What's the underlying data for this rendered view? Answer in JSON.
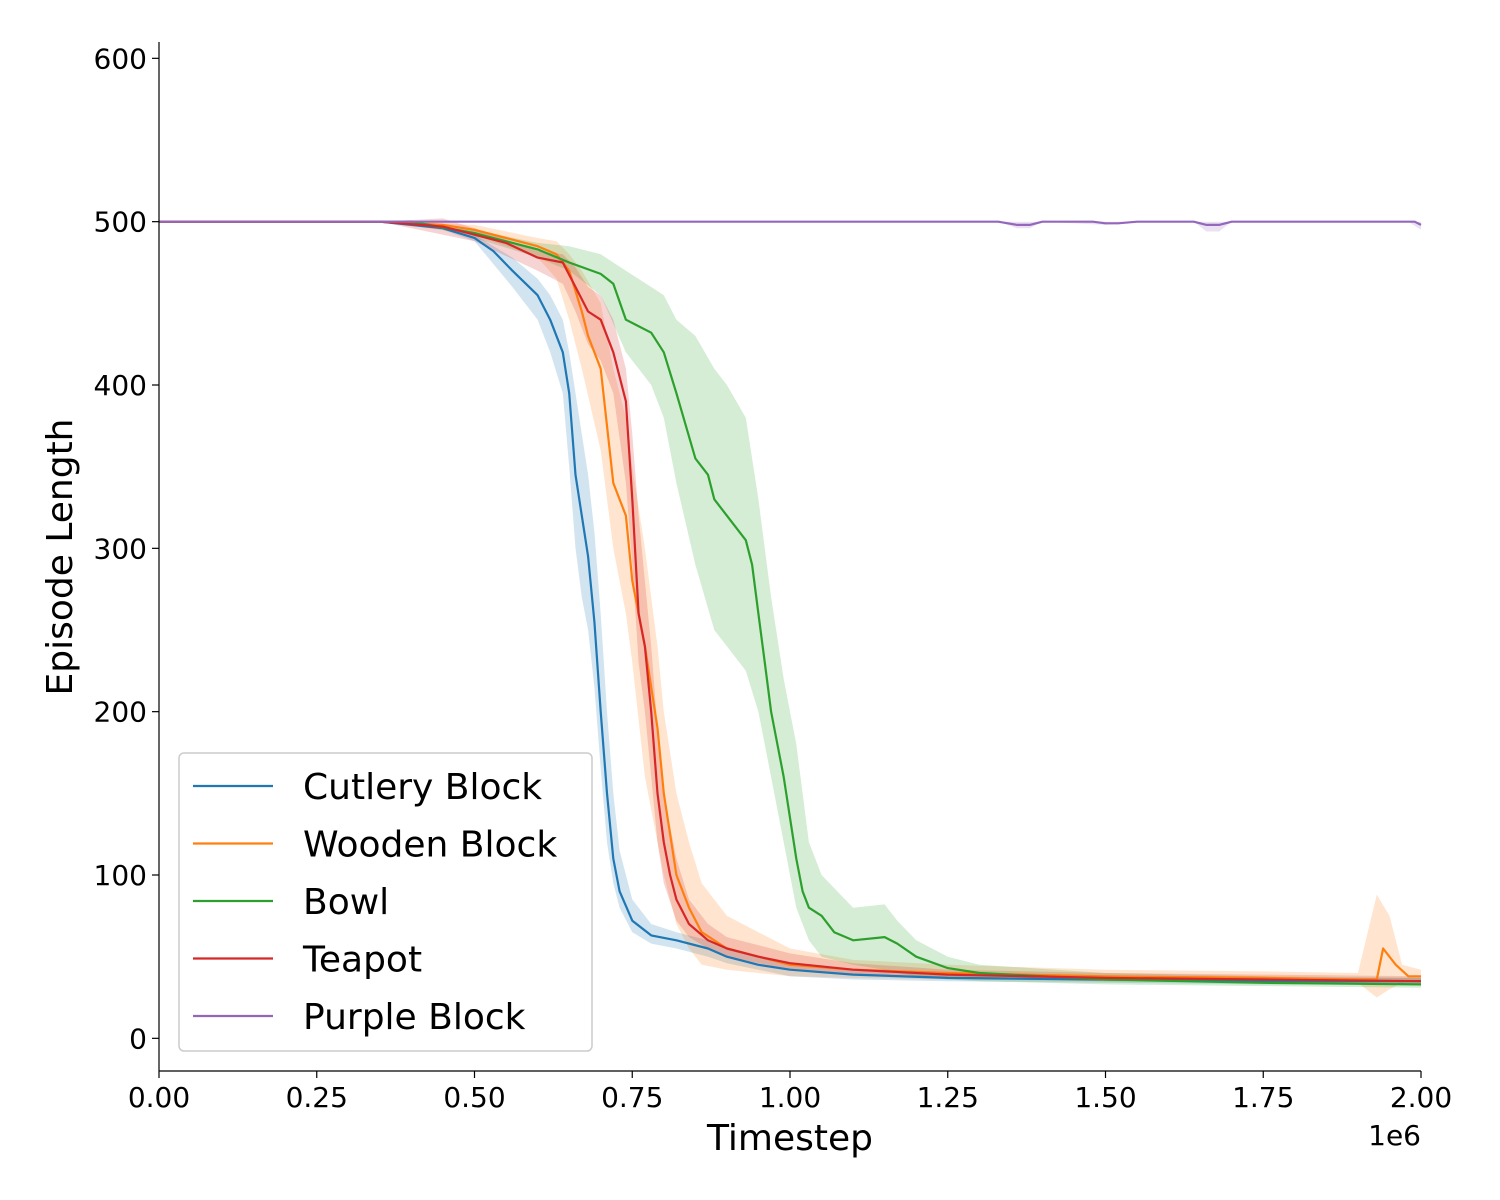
{
  "chart_data": {
    "type": "line",
    "title": "",
    "xlabel": "Timestep",
    "ylabel": "Episode Length",
    "x_offset_label": "1e6",
    "xlim": [
      0,
      2.0
    ],
    "ylim": [
      -20,
      610
    ],
    "x_ticks": [
      "0.00",
      "0.25",
      "0.50",
      "0.75",
      "1.00",
      "1.25",
      "1.50",
      "1.75",
      "2.00"
    ],
    "y_ticks": [
      "0",
      "100",
      "200",
      "300",
      "400",
      "500",
      "600"
    ],
    "grid": false,
    "legend_position": "lower-left",
    "series": [
      {
        "name": "Cutlery Block",
        "color": "#1f77b4",
        "points": [
          [
            0,
            500
          ],
          [
            0.35,
            500
          ],
          [
            0.4,
            498
          ],
          [
            0.45,
            496
          ],
          [
            0.5,
            490
          ],
          [
            0.53,
            482
          ],
          [
            0.56,
            470
          ],
          [
            0.6,
            455
          ],
          [
            0.62,
            440
          ],
          [
            0.64,
            420
          ],
          [
            0.65,
            395
          ],
          [
            0.66,
            345
          ],
          [
            0.67,
            320
          ],
          [
            0.68,
            295
          ],
          [
            0.69,
            255
          ],
          [
            0.7,
            200
          ],
          [
            0.71,
            150
          ],
          [
            0.72,
            110
          ],
          [
            0.73,
            90
          ],
          [
            0.75,
            72
          ],
          [
            0.78,
            63
          ],
          [
            0.82,
            60
          ],
          [
            0.87,
            55
          ],
          [
            0.9,
            50
          ],
          [
            0.95,
            45
          ],
          [
            1.0,
            42
          ],
          [
            1.1,
            39
          ],
          [
            1.25,
            37
          ],
          [
            1.5,
            36
          ],
          [
            1.75,
            35
          ],
          [
            2.0,
            35
          ]
        ],
        "band": [
          [
            0,
            500,
            500
          ],
          [
            0.35,
            500,
            500
          ],
          [
            0.45,
            497,
            495
          ],
          [
            0.5,
            492,
            488
          ],
          [
            0.56,
            478,
            460
          ],
          [
            0.6,
            465,
            440
          ],
          [
            0.62,
            455,
            420
          ],
          [
            0.64,
            440,
            395
          ],
          [
            0.65,
            420,
            350
          ],
          [
            0.66,
            395,
            300
          ],
          [
            0.67,
            370,
            270
          ],
          [
            0.68,
            345,
            250
          ],
          [
            0.69,
            310,
            215
          ],
          [
            0.7,
            260,
            165
          ],
          [
            0.71,
            200,
            120
          ],
          [
            0.72,
            150,
            95
          ],
          [
            0.73,
            115,
            80
          ],
          [
            0.75,
            85,
            65
          ],
          [
            0.78,
            70,
            58
          ],
          [
            0.82,
            65,
            55
          ],
          [
            0.87,
            60,
            50
          ],
          [
            0.9,
            55,
            46
          ],
          [
            1.0,
            46,
            38
          ],
          [
            1.1,
            42,
            36
          ],
          [
            1.25,
            39,
            35
          ],
          [
            1.5,
            38,
            34
          ],
          [
            1.75,
            37,
            33
          ],
          [
            2.0,
            37,
            33
          ]
        ]
      },
      {
        "name": "Wooden Block",
        "color": "#ff7f0e",
        "points": [
          [
            0,
            500
          ],
          [
            0.35,
            500
          ],
          [
            0.45,
            498
          ],
          [
            0.5,
            495
          ],
          [
            0.55,
            490
          ],
          [
            0.6,
            485
          ],
          [
            0.63,
            480
          ],
          [
            0.65,
            470
          ],
          [
            0.67,
            445
          ],
          [
            0.68,
            430
          ],
          [
            0.7,
            410
          ],
          [
            0.72,
            340
          ],
          [
            0.74,
            320
          ],
          [
            0.75,
            280
          ],
          [
            0.77,
            240
          ],
          [
            0.79,
            190
          ],
          [
            0.8,
            150
          ],
          [
            0.82,
            100
          ],
          [
            0.84,
            80
          ],
          [
            0.86,
            65
          ],
          [
            0.9,
            55
          ],
          [
            0.95,
            50
          ],
          [
            1.0,
            45
          ],
          [
            1.1,
            42
          ],
          [
            1.25,
            40
          ],
          [
            1.5,
            38
          ],
          [
            1.75,
            37
          ],
          [
            1.9,
            36
          ],
          [
            1.93,
            36
          ],
          [
            1.94,
            55
          ],
          [
            1.96,
            45
          ],
          [
            1.98,
            38
          ],
          [
            2.0,
            38
          ]
        ],
        "band": [
          [
            0,
            500,
            500
          ],
          [
            0.35,
            500,
            500
          ],
          [
            0.5,
            498,
            492
          ],
          [
            0.6,
            490,
            478
          ],
          [
            0.63,
            488,
            465
          ],
          [
            0.65,
            480,
            440
          ],
          [
            0.67,
            470,
            410
          ],
          [
            0.7,
            450,
            360
          ],
          [
            0.72,
            410,
            300
          ],
          [
            0.74,
            380,
            260
          ],
          [
            0.75,
            350,
            230
          ],
          [
            0.77,
            300,
            160
          ],
          [
            0.79,
            240,
            120
          ],
          [
            0.8,
            200,
            100
          ],
          [
            0.82,
            150,
            70
          ],
          [
            0.84,
            120,
            55
          ],
          [
            0.86,
            95,
            45
          ],
          [
            0.9,
            75,
            42
          ],
          [
            0.95,
            65,
            40
          ],
          [
            1.0,
            55,
            38
          ],
          [
            1.1,
            48,
            37
          ],
          [
            1.25,
            45,
            36
          ],
          [
            1.5,
            42,
            35
          ],
          [
            1.75,
            41,
            34
          ],
          [
            1.9,
            40,
            34
          ],
          [
            1.93,
            88,
            25
          ],
          [
            1.95,
            75,
            30
          ],
          [
            1.97,
            45,
            34
          ],
          [
            2.0,
            42,
            35
          ]
        ]
      },
      {
        "name": "Bowl",
        "color": "#2ca02c",
        "points": [
          [
            0,
            500
          ],
          [
            0.4,
            500
          ],
          [
            0.5,
            493
          ],
          [
            0.55,
            488
          ],
          [
            0.6,
            483
          ],
          [
            0.65,
            475
          ],
          [
            0.7,
            468
          ],
          [
            0.72,
            462
          ],
          [
            0.74,
            440
          ],
          [
            0.78,
            432
          ],
          [
            0.8,
            420
          ],
          [
            0.82,
            395
          ],
          [
            0.85,
            355
          ],
          [
            0.87,
            345
          ],
          [
            0.88,
            330
          ],
          [
            0.9,
            320
          ],
          [
            0.93,
            305
          ],
          [
            0.94,
            290
          ],
          [
            0.95,
            260
          ],
          [
            0.96,
            230
          ],
          [
            0.97,
            200
          ],
          [
            0.98,
            180
          ],
          [
            0.99,
            160
          ],
          [
            1.0,
            135
          ],
          [
            1.01,
            110
          ],
          [
            1.02,
            90
          ],
          [
            1.03,
            80
          ],
          [
            1.05,
            75
          ],
          [
            1.07,
            65
          ],
          [
            1.1,
            60
          ],
          [
            1.15,
            62
          ],
          [
            1.17,
            58
          ],
          [
            1.2,
            50
          ],
          [
            1.25,
            43
          ],
          [
            1.3,
            40
          ],
          [
            1.5,
            36
          ],
          [
            1.75,
            34
          ],
          [
            2.0,
            33
          ]
        ],
        "band": [
          [
            0,
            500,
            500
          ],
          [
            0.4,
            500,
            500
          ],
          [
            0.5,
            495,
            490
          ],
          [
            0.6,
            487,
            478
          ],
          [
            0.65,
            485,
            470
          ],
          [
            0.7,
            480,
            455
          ],
          [
            0.74,
            470,
            420
          ],
          [
            0.78,
            460,
            400
          ],
          [
            0.8,
            455,
            380
          ],
          [
            0.82,
            440,
            340
          ],
          [
            0.85,
            430,
            290
          ],
          [
            0.88,
            410,
            250
          ],
          [
            0.9,
            400,
            240
          ],
          [
            0.93,
            380,
            225
          ],
          [
            0.95,
            330,
            200
          ],
          [
            0.97,
            270,
            160
          ],
          [
            0.99,
            220,
            120
          ],
          [
            1.01,
            180,
            80
          ],
          [
            1.03,
            120,
            60
          ],
          [
            1.05,
            100,
            50
          ],
          [
            1.1,
            80,
            45
          ],
          [
            1.15,
            82,
            42
          ],
          [
            1.17,
            72,
            40
          ],
          [
            1.2,
            60,
            38
          ],
          [
            1.25,
            50,
            36
          ],
          [
            1.3,
            45,
            35
          ],
          [
            1.5,
            40,
            33
          ],
          [
            1.75,
            38,
            32
          ],
          [
            2.0,
            37,
            31
          ]
        ]
      },
      {
        "name": "Teapot",
        "color": "#d62728",
        "points": [
          [
            0,
            500
          ],
          [
            0.35,
            500
          ],
          [
            0.45,
            497
          ],
          [
            0.5,
            492
          ],
          [
            0.55,
            487
          ],
          [
            0.6,
            478
          ],
          [
            0.64,
            475
          ],
          [
            0.66,
            460
          ],
          [
            0.68,
            445
          ],
          [
            0.7,
            440
          ],
          [
            0.72,
            420
          ],
          [
            0.74,
            390
          ],
          [
            0.75,
            330
          ],
          [
            0.76,
            260
          ],
          [
            0.77,
            240
          ],
          [
            0.78,
            200
          ],
          [
            0.79,
            150
          ],
          [
            0.8,
            120
          ],
          [
            0.81,
            100
          ],
          [
            0.82,
            85
          ],
          [
            0.84,
            70
          ],
          [
            0.87,
            60
          ],
          [
            0.9,
            55
          ],
          [
            0.95,
            50
          ],
          [
            1.0,
            46
          ],
          [
            1.1,
            42
          ],
          [
            1.25,
            39
          ],
          [
            1.5,
            37
          ],
          [
            1.75,
            36
          ],
          [
            2.0,
            35
          ]
        ],
        "band": [
          [
            0,
            500,
            500
          ],
          [
            0.35,
            500,
            500
          ],
          [
            0.45,
            502,
            492
          ],
          [
            0.5,
            496,
            488
          ],
          [
            0.6,
            482,
            470
          ],
          [
            0.64,
            480,
            462
          ],
          [
            0.66,
            472,
            445
          ],
          [
            0.68,
            460,
            425
          ],
          [
            0.7,
            455,
            415
          ],
          [
            0.72,
            440,
            395
          ],
          [
            0.74,
            410,
            340
          ],
          [
            0.75,
            370,
            290
          ],
          [
            0.76,
            320,
            230
          ],
          [
            0.77,
            280,
            200
          ],
          [
            0.78,
            240,
            160
          ],
          [
            0.79,
            190,
            120
          ],
          [
            0.8,
            150,
            95
          ],
          [
            0.82,
            110,
            72
          ],
          [
            0.84,
            85,
            62
          ],
          [
            0.87,
            70,
            55
          ],
          [
            0.9,
            62,
            50
          ],
          [
            1.0,
            52,
            42
          ],
          [
            1.1,
            46,
            39
          ],
          [
            1.25,
            42,
            37
          ],
          [
            1.5,
            40,
            35
          ],
          [
            1.75,
            39,
            34
          ],
          [
            2.0,
            38,
            33
          ]
        ]
      },
      {
        "name": "Purple Block",
        "color": "#9467bd",
        "points": [
          [
            0,
            500
          ],
          [
            1.33,
            500
          ],
          [
            1.36,
            498
          ],
          [
            1.38,
            498
          ],
          [
            1.4,
            500
          ],
          [
            1.48,
            500
          ],
          [
            1.5,
            499
          ],
          [
            1.52,
            499
          ],
          [
            1.55,
            500
          ],
          [
            1.64,
            500
          ],
          [
            1.66,
            498
          ],
          [
            1.68,
            498
          ],
          [
            1.7,
            500
          ],
          [
            1.99,
            500
          ],
          [
            2.0,
            498
          ]
        ],
        "band": [
          [
            0,
            500,
            500
          ],
          [
            1.33,
            500,
            500
          ],
          [
            1.36,
            500,
            496
          ],
          [
            1.38,
            500,
            496
          ],
          [
            1.4,
            500,
            500
          ],
          [
            1.5,
            500,
            498
          ],
          [
            1.55,
            500,
            500
          ],
          [
            1.64,
            500,
            500
          ],
          [
            1.66,
            500,
            494
          ],
          [
            1.68,
            500,
            494
          ],
          [
            1.7,
            500,
            500
          ],
          [
            1.98,
            500,
            500
          ],
          [
            2.0,
            500,
            495
          ]
        ]
      }
    ]
  }
}
